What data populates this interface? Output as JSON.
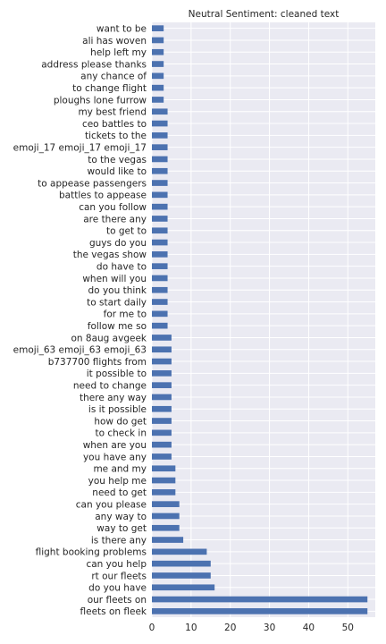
{
  "chart_data": {
    "type": "bar",
    "orientation": "horizontal",
    "title": "Neutral Sentiment: cleaned text",
    "xlabel": "",
    "ylabel": "",
    "xlim": [
      0,
      57
    ],
    "xticks": [
      0,
      10,
      20,
      30,
      40,
      50
    ],
    "grid": true,
    "legend": "none",
    "bar_color": "#4c72b0",
    "background": "#eaeaf2",
    "categories": [
      "want to be",
      "ali has woven",
      "help left my",
      "address please thanks",
      "any chance of",
      "to change flight",
      "ploughs lone furrow",
      "my best friend",
      "ceo battles to",
      "tickets to the",
      "emoji_17 emoji_17 emoji_17",
      "to the vegas",
      "would like to",
      "to appease passengers",
      "battles to appease",
      "can you follow",
      "are there any",
      "to get to",
      "guys do you",
      "the vegas show",
      "do have to",
      "when will you",
      "do you think",
      "to start daily",
      "for me to",
      "follow me so",
      "on 8aug avgeek",
      "emoji_63 emoji_63 emoji_63",
      "b737700 flights from",
      "it possible to",
      "need to change",
      "there any way",
      "is it possible",
      "how do get",
      "to check in",
      "when are you",
      "you have any",
      "me and my",
      "you help me",
      "need to get",
      "can you please",
      "any way to",
      "way to get",
      "is there any",
      "flight booking problems",
      "can you help",
      "rt our fleets",
      "do you have",
      "our fleets on",
      "fleets on fleek"
    ],
    "values": [
      3,
      3,
      3,
      3,
      3,
      3,
      3,
      4,
      4,
      4,
      4,
      4,
      4,
      4,
      4,
      4,
      4,
      4,
      4,
      4,
      4,
      4,
      4,
      4,
      4,
      4,
      5,
      5,
      5,
      5,
      5,
      5,
      5,
      5,
      5,
      5,
      5,
      6,
      6,
      6,
      7,
      7,
      7,
      8,
      14,
      15,
      15,
      16,
      55,
      55
    ]
  }
}
